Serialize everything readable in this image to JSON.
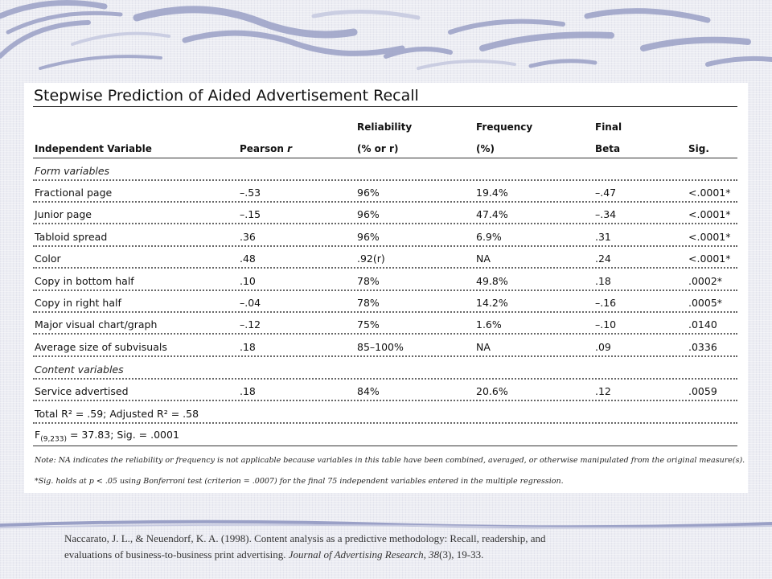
{
  "table": {
    "title": "Stepwise Prediction of Aided Advertisement Recall",
    "headers": {
      "variable": "Independent Variable",
      "pearson_label": "Pearson ",
      "pearson_r": "r",
      "reliability_line1": "Reliability",
      "reliability_line2": "(% or r)",
      "frequency_line1": "Frequency",
      "frequency_line2": "(%)",
      "beta_line1": "Final",
      "beta_line2": "Beta",
      "sig": "Sig."
    },
    "section_form": "Form variables",
    "form_rows": [
      {
        "variable": "Fractional page",
        "pearson": "–.53",
        "reliability": "96%",
        "frequency": "19.4%",
        "beta": "–.47",
        "sig": "<.0001*"
      },
      {
        "variable": "Junior page",
        "pearson": "–.15",
        "reliability": "96%",
        "frequency": "47.4%",
        "beta": "–.34",
        "sig": "<.0001*"
      },
      {
        "variable": "Tabloid spread",
        "pearson": ".36",
        "reliability": "96%",
        "frequency": "6.9%",
        "beta": ".31",
        "sig": "<.0001*"
      },
      {
        "variable": "Color",
        "pearson": ".48",
        "reliability": ".92(r)",
        "frequency": "NA",
        "beta": ".24",
        "sig": "<.0001*"
      },
      {
        "variable": "Copy in bottom half",
        "pearson": ".10",
        "reliability": "78%",
        "frequency": "49.8%",
        "beta": ".18",
        "sig": ".0002*"
      },
      {
        "variable": "Copy in right half",
        "pearson": "–.04",
        "reliability": "78%",
        "frequency": "14.2%",
        "beta": "–.16",
        "sig": ".0005*"
      },
      {
        "variable": "Major visual chart/graph",
        "pearson": "–.12",
        "reliability": "75%",
        "frequency": "1.6%",
        "beta": "–.10",
        "sig": ".0140"
      },
      {
        "variable": "Average size of subvisuals",
        "pearson": ".18",
        "reliability": "85–100%",
        "frequency": "NA",
        "beta": ".09",
        "sig": ".0336"
      }
    ],
    "section_content": "Content variables",
    "content_rows": [
      {
        "variable": "Service advertised",
        "pearson": ".18",
        "reliability": "84%",
        "frequency": "20.6%",
        "beta": ".12",
        "sig": ".0059"
      }
    ],
    "summary_r2": "Total R² = .59; Adjusted R² = .58",
    "summary_f_prefix": "F",
    "summary_f_sub": "(9,233)",
    "summary_f_rest": " = 37.83; Sig. = .0001",
    "note_na": "Note: NA indicates the reliability or frequency is not applicable because variables in this table have been combined, averaged, or otherwise manipulated from the original measure(s).",
    "note_sig": "*Sig. holds at p < .05 using Bonferroni test (criterion = .0007) for the final 75 independent variables entered in the multiple regression."
  },
  "citation": {
    "line1": "Naccarato, J. L., & Neuendorf, K. A.  (1998).  Content analysis as a predictive methodology:  Recall, readership, and",
    "line2_prefix": "evaluations of business-to-business print advertising.  ",
    "journal": "Journal of Advertising Research, 38",
    "line2_suffix": "(3), 19-33."
  },
  "colors": {
    "background": "#ecedf3",
    "swirl": "#9aa0c6",
    "panel": "#ffffff"
  }
}
